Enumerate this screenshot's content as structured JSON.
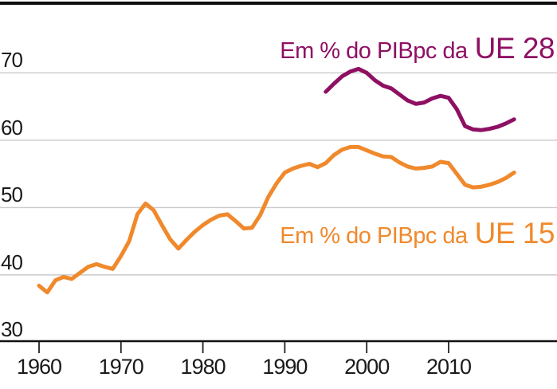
{
  "chart_data": {
    "type": "line",
    "title": "",
    "xlabel": "",
    "ylabel": "",
    "x_ticks": [
      1960,
      1970,
      1980,
      1990,
      2000,
      2010
    ],
    "y_ticks": [
      30,
      40,
      50,
      60,
      70
    ],
    "xlim": [
      1959.5,
      2019
    ],
    "ylim": [
      28,
      72
    ],
    "grid": "horizontal",
    "grid_color": "#c9c9c9",
    "axis_color": "#111111",
    "tick_label_color": "#1a1a1a",
    "top_rule_color": "#0d0d0d",
    "legend_position": "inline-right",
    "series": [
      {
        "name": "UE 28",
        "legend_prefix": "Em % do PIBpc da",
        "legend_highlight": "UE 28",
        "color": "#8e1063",
        "x": [
          1995,
          1996,
          1997,
          1998,
          1999,
          2000,
          2001,
          2002,
          2003,
          2004,
          2005,
          2006,
          2007,
          2008,
          2009,
          2010,
          2011,
          2012,
          2013,
          2014,
          2015,
          2016,
          2017,
          2018
        ],
        "values": [
          67.2,
          68.4,
          69.5,
          70.2,
          70.6,
          70.0,
          68.9,
          68.1,
          67.7,
          66.8,
          65.9,
          65.4,
          65.6,
          66.2,
          66.6,
          66.3,
          64.6,
          62.1,
          61.6,
          61.5,
          61.7,
          62.0,
          62.5,
          63.1
        ]
      },
      {
        "name": "UE 15",
        "legend_prefix": "Em % do PIBpc da",
        "legend_highlight": "UE 15",
        "color": "#f0892c",
        "x": [
          1960,
          1961,
          1962,
          1963,
          1964,
          1965,
          1966,
          1967,
          1968,
          1969,
          1970,
          1971,
          1972,
          1973,
          1974,
          1975,
          1976,
          1977,
          1978,
          1979,
          1980,
          1981,
          1982,
          1983,
          1984,
          1985,
          1986,
          1987,
          1988,
          1989,
          1990,
          1991,
          1992,
          1993,
          1994,
          1995,
          1996,
          1997,
          1998,
          1999,
          2000,
          2001,
          2002,
          2003,
          2004,
          2005,
          2006,
          2007,
          2008,
          2009,
          2010,
          2011,
          2012,
          2013,
          2014,
          2015,
          2016,
          2017,
          2018
        ],
        "values": [
          38.4,
          37.4,
          39.2,
          39.7,
          39.4,
          40.3,
          41.2,
          41.6,
          41.2,
          40.9,
          42.8,
          45.0,
          49.0,
          50.6,
          49.6,
          47.4,
          45.3,
          43.9,
          45.2,
          46.4,
          47.4,
          48.2,
          48.8,
          49.0,
          48.0,
          46.9,
          47.0,
          48.9,
          51.6,
          53.6,
          55.2,
          55.8,
          56.2,
          56.5,
          56.0,
          56.6,
          57.8,
          58.6,
          59.0,
          59.0,
          58.5,
          58.0,
          57.6,
          57.5,
          56.7,
          56.1,
          55.8,
          55.9,
          56.1,
          56.8,
          56.6,
          55.0,
          53.4,
          53.0,
          53.1,
          53.4,
          53.8,
          54.4,
          55.2
        ]
      }
    ]
  }
}
